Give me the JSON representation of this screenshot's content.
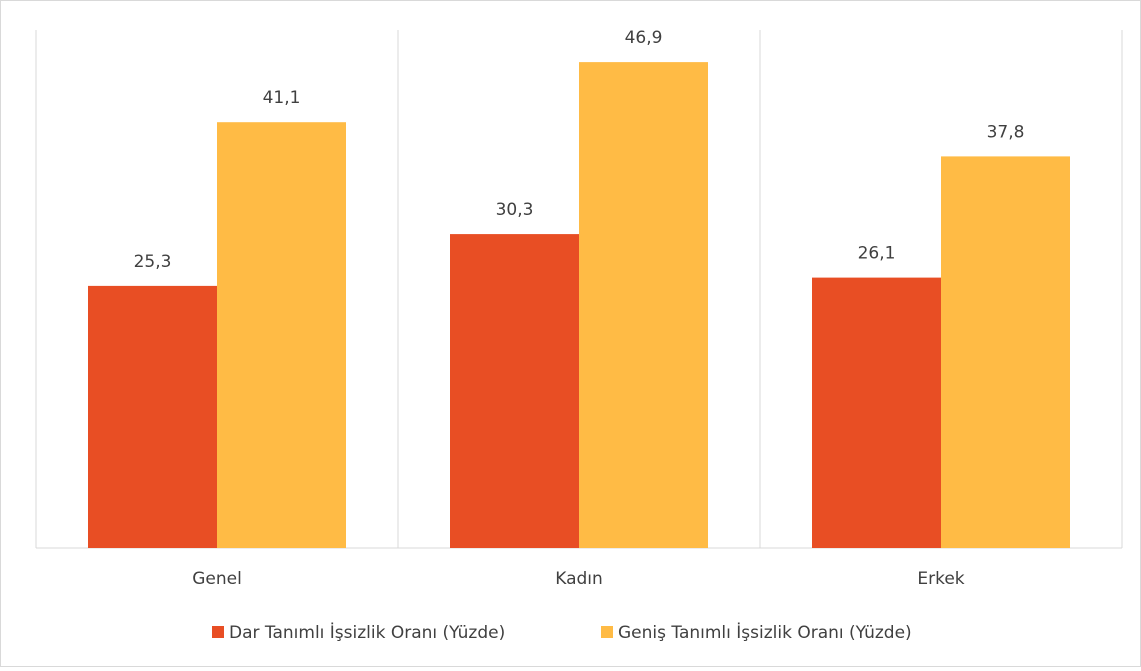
{
  "chart_data": {
    "type": "bar",
    "categories": [
      "Genel",
      "Kadın",
      "Erkek"
    ],
    "series": [
      {
        "name": "Dar Tanımlı İşsizlik Oranı (Yüzde)",
        "color": "#e84e24",
        "values": [
          25.3,
          30.3,
          26.1
        ],
        "value_labels": [
          "25,3",
          "30,3",
          "26,1"
        ]
      },
      {
        "name": "Geniş Tanımlı İşsizlik Oranı (Yüzde)",
        "color": "#ffbb45",
        "values": [
          41.1,
          46.9,
          37.8
        ],
        "value_labels": [
          "41,1",
          "46,9",
          "37,8"
        ]
      }
    ],
    "ylim": [
      0,
      50
    ],
    "legend": "bottom"
  }
}
